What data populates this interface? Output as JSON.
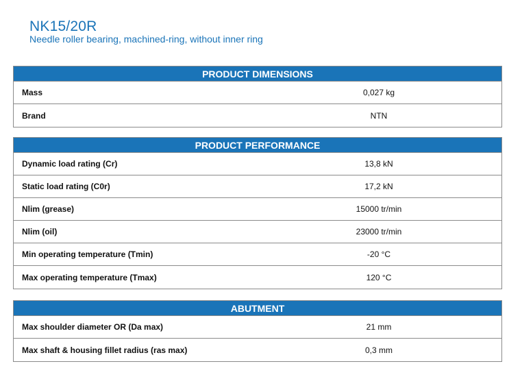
{
  "product": {
    "title": "NK15/20R",
    "subtitle": "Needle roller bearing, machined-ring, without inner ring"
  },
  "sections": {
    "dimensions": {
      "header": "PRODUCT DIMENSIONS",
      "rows": [
        {
          "label": "Mass",
          "value": "0,027 kg"
        },
        {
          "label": "Brand",
          "value": "NTN"
        }
      ]
    },
    "performance": {
      "header": "PRODUCT PERFORMANCE",
      "rows": [
        {
          "label": "Dynamic load rating (Cr)",
          "value": "13,8 kN"
        },
        {
          "label": "Static load rating (C0r)",
          "value": "17,2 kN"
        },
        {
          "label": "Nlim (grease)",
          "value": "15000 tr/min"
        },
        {
          "label": "Nlim (oil)",
          "value": "23000 tr/min"
        },
        {
          "label": "Min operating temperature (Tmin)",
          "value": "-20 °C"
        },
        {
          "label": "Max operating temperature (Tmax)",
          "value": "120 °C"
        }
      ]
    },
    "abutment": {
      "header": "ABUTMENT",
      "rows": [
        {
          "label": "Max shoulder diameter OR (Da max)",
          "value": "21 mm"
        },
        {
          "label": "Max shaft & housing fillet radius (ras max)",
          "value": "0,3 mm"
        }
      ]
    }
  },
  "colors": {
    "accent": "#1a74b8",
    "border": "#8a8a8a"
  }
}
